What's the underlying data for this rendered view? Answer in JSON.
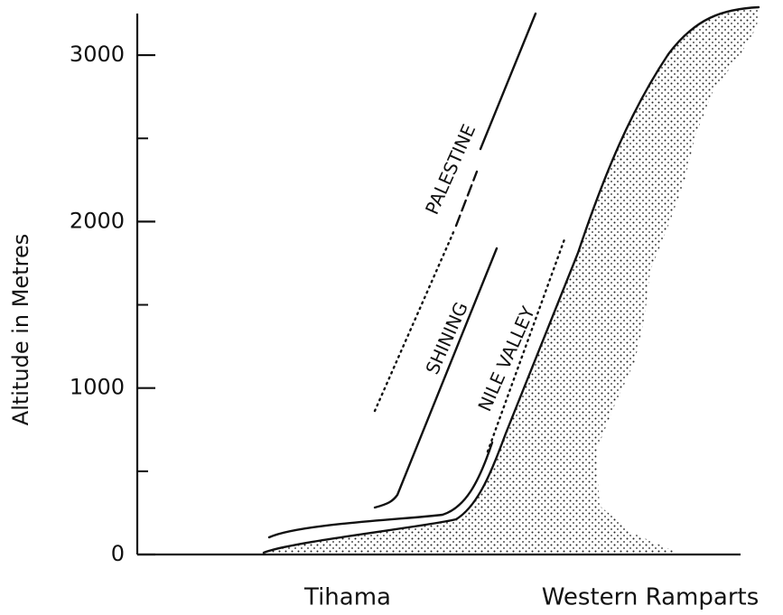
{
  "chart_data": {
    "type": "profile",
    "y_label": "Altitude in Metres",
    "ylim": [
      0,
      3250
    ],
    "yticks": [
      0,
      1000,
      2000,
      3000
    ],
    "yminor": [
      500,
      1500,
      2500
    ],
    "x_labels": [
      "Tihama",
      "Western Ramparts"
    ],
    "annotations": [
      "PALESTINE",
      "SHINING",
      "NILE VALLEY"
    ]
  }
}
